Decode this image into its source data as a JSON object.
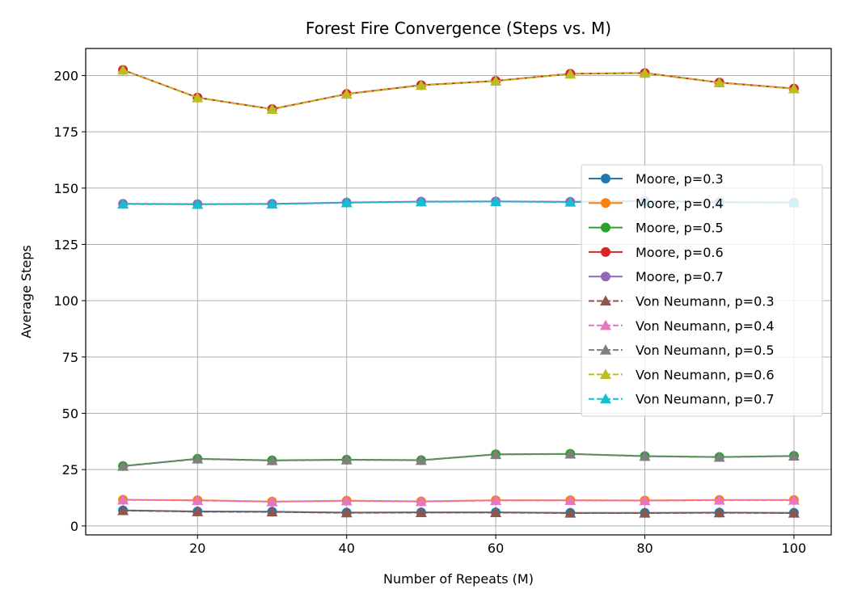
{
  "chart_data": {
    "type": "line",
    "title": "Forest Fire Convergence (Steps vs. M)",
    "xlabel": "Number of Repeats (M)",
    "ylabel": "Average Steps",
    "xlim": [
      5,
      105
    ],
    "ylim": [
      -4,
      212
    ],
    "xticks": [
      20,
      40,
      60,
      80,
      100
    ],
    "yticks": [
      0,
      25,
      50,
      75,
      100,
      125,
      150,
      175,
      200
    ],
    "grid": true,
    "legend_position": "center-right",
    "x": [
      10,
      20,
      30,
      40,
      50,
      60,
      70,
      80,
      90,
      100
    ],
    "series": [
      {
        "name": "Moore, p=0.3",
        "color": "#1f77b4",
        "marker": "circle",
        "linestyle": "solid",
        "values": [
          6.9,
          6.4,
          6.3,
          5.9,
          6.0,
          6.0,
          5.8,
          5.8,
          5.9,
          5.8
        ]
      },
      {
        "name": "Moore, p=0.4",
        "color": "#ff7f0e",
        "marker": "circle",
        "linestyle": "solid",
        "values": [
          11.6,
          11.4,
          10.8,
          11.2,
          10.9,
          11.4,
          11.4,
          11.3,
          11.5,
          11.5
        ]
      },
      {
        "name": "Moore, p=0.5",
        "color": "#2ca02c",
        "marker": "circle",
        "linestyle": "solid",
        "values": [
          26.6,
          29.8,
          29.1,
          29.4,
          29.2,
          31.8,
          32.0,
          31.0,
          30.6,
          31.1
        ]
      },
      {
        "name": "Moore, p=0.6",
        "color": "#d62728",
        "marker": "circle",
        "linestyle": "solid",
        "values": [
          202.5,
          190.2,
          185.1,
          191.8,
          195.7,
          197.6,
          200.8,
          201.1,
          196.9,
          194.2
        ]
      },
      {
        "name": "Moore, p=0.7",
        "color": "#9467bd",
        "marker": "circle",
        "linestyle": "solid",
        "values": [
          143.0,
          142.9,
          143.0,
          143.6,
          144.0,
          144.1,
          143.9,
          144.3,
          143.8,
          143.6
        ]
      },
      {
        "name": "Von Neumann, p=0.3",
        "color": "#8c564b",
        "marker": "triangle",
        "linestyle": "dashed",
        "values": [
          6.8,
          6.3,
          6.2,
          5.8,
          5.9,
          5.9,
          5.7,
          5.7,
          5.8,
          5.7
        ]
      },
      {
        "name": "Von Neumann, p=0.4",
        "color": "#e377c2",
        "marker": "triangle",
        "linestyle": "dashed",
        "values": [
          11.5,
          11.3,
          10.7,
          11.1,
          10.8,
          11.3,
          11.3,
          11.2,
          11.4,
          11.4
        ]
      },
      {
        "name": "Von Neumann, p=0.5",
        "color": "#7f7f7f",
        "marker": "triangle",
        "linestyle": "dashed",
        "values": [
          26.5,
          29.7,
          29.0,
          29.3,
          29.1,
          31.7,
          31.9,
          30.9,
          30.5,
          31.0
        ]
      },
      {
        "name": "Von Neumann, p=0.6",
        "color": "#bcbd22",
        "marker": "triangle",
        "linestyle": "dashed",
        "values": [
          202.4,
          190.1,
          185.0,
          191.7,
          195.6,
          197.5,
          200.7,
          201.0,
          196.8,
          194.1
        ]
      },
      {
        "name": "Von Neumann, p=0.7",
        "color": "#17becf",
        "marker": "triangle",
        "linestyle": "dashed",
        "values": [
          142.9,
          142.8,
          142.9,
          143.5,
          143.9,
          144.0,
          143.8,
          144.2,
          143.7,
          143.5
        ]
      }
    ]
  }
}
